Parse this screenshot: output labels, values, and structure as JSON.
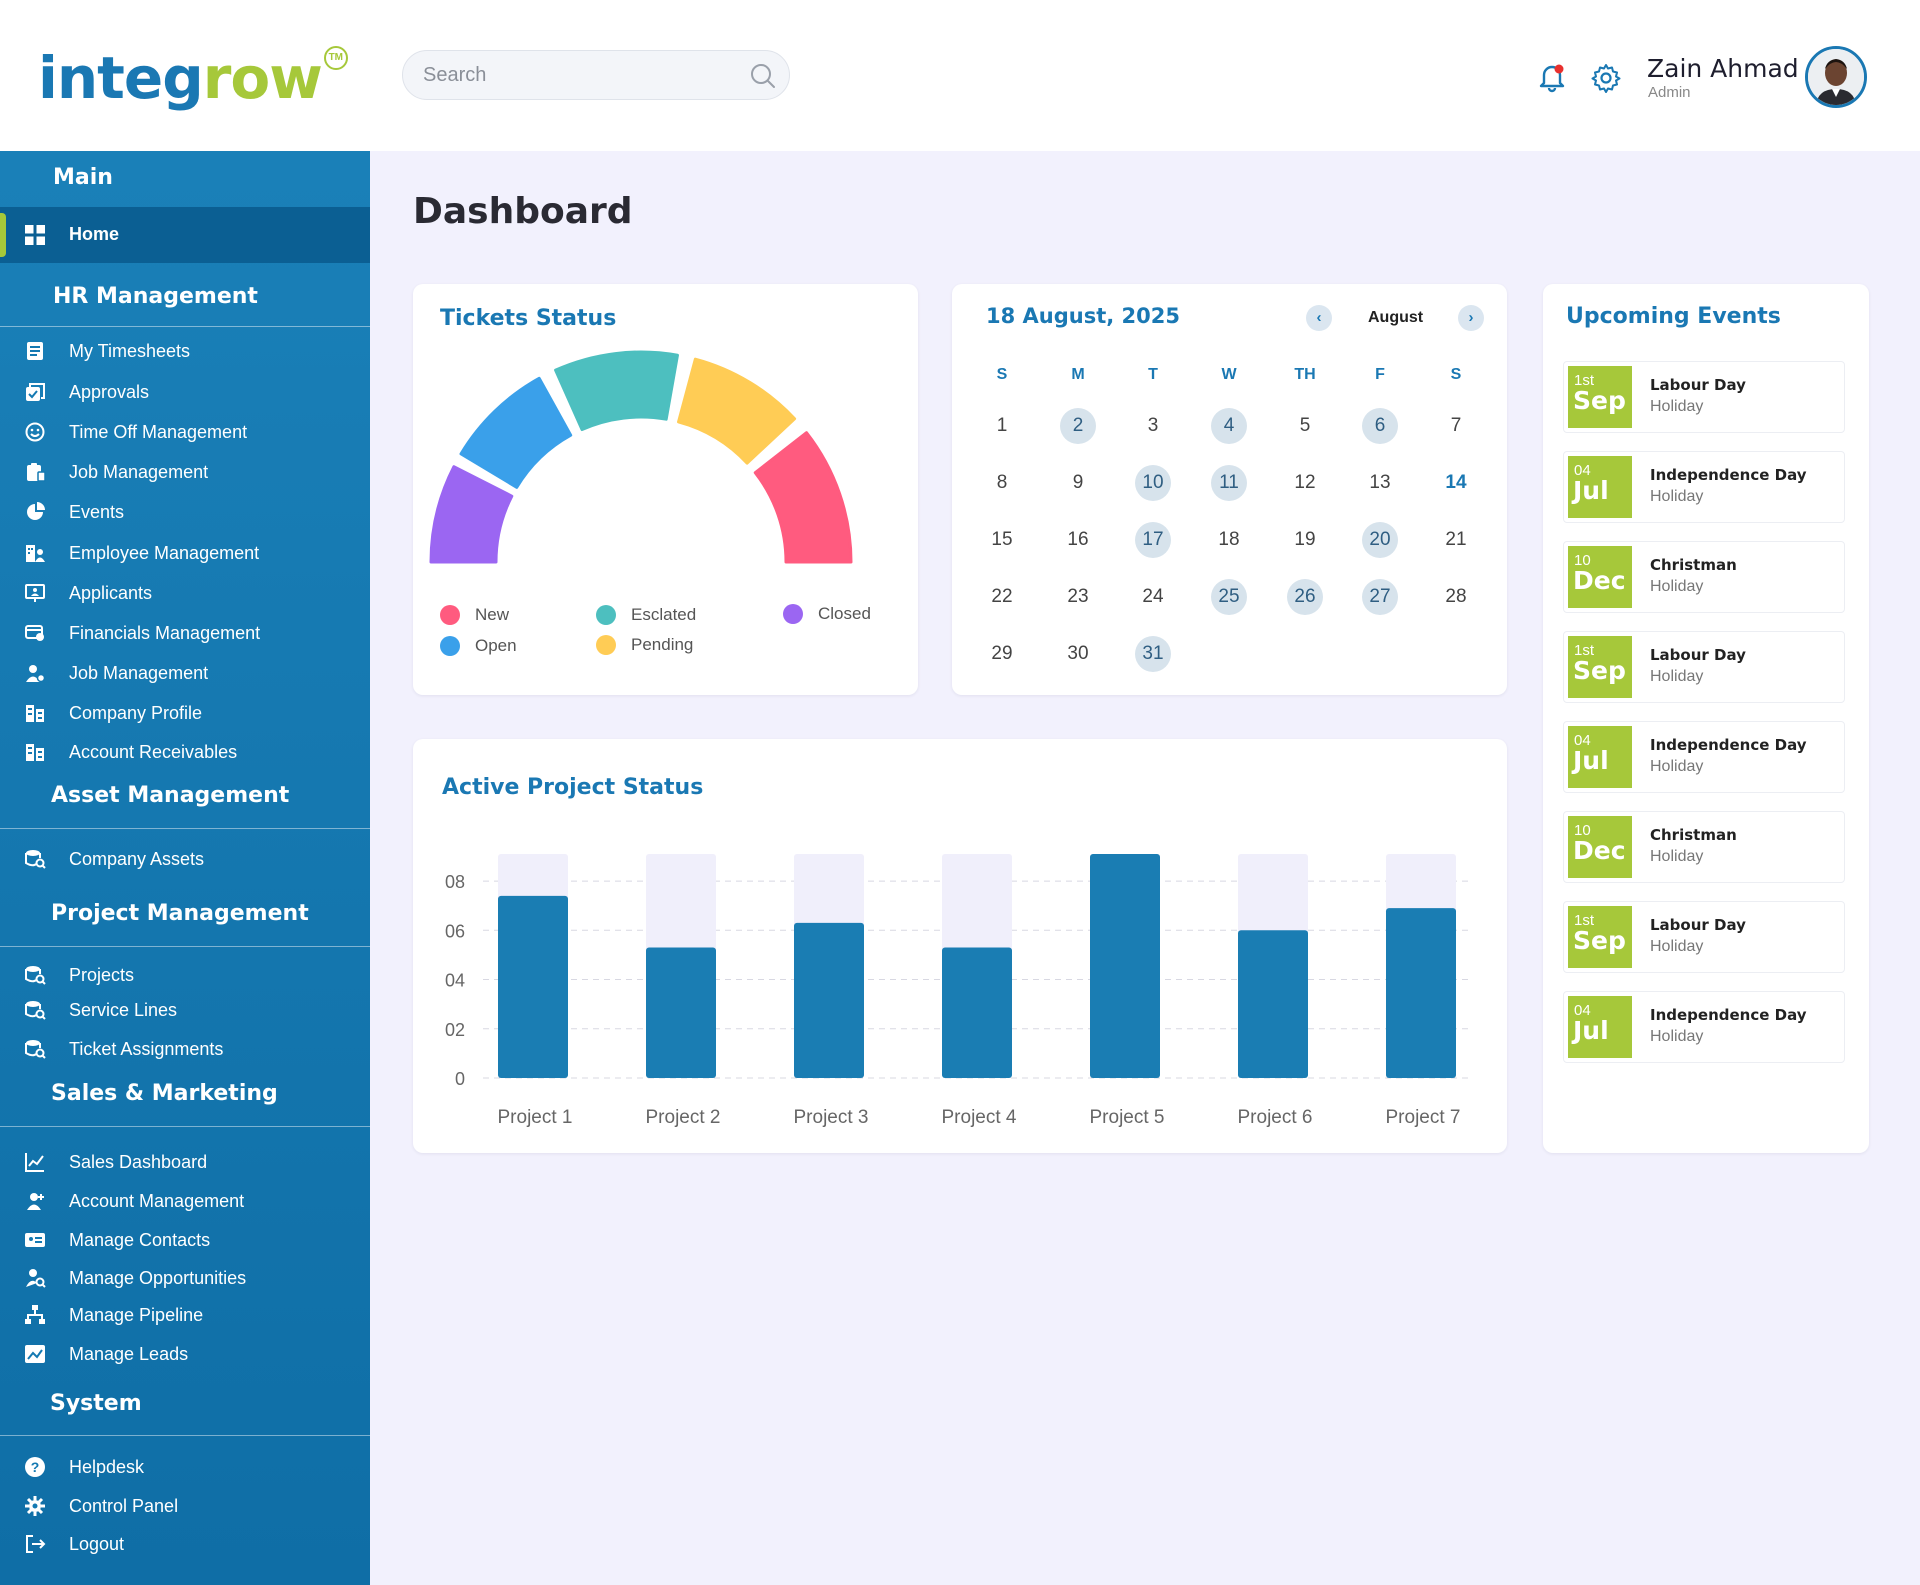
{
  "header": {
    "logo_part1": "integ",
    "logo_part2": "row",
    "logo_tm": "TM",
    "search_placeholder": "Search",
    "user_name": "Zain Ahmad",
    "user_role": "Admin"
  },
  "sidebar": {
    "main_title": "Main",
    "home_label": "Home",
    "hr_title": "HR Management",
    "hr_items": [
      {
        "label": "My Timesheets",
        "icon": "document-list-icon"
      },
      {
        "label": "Approvals",
        "icon": "checkbox-stack-icon"
      },
      {
        "label": "Time Off Management",
        "icon": "smiley-icon"
      },
      {
        "label": "Job Management",
        "icon": "clipboard-icon"
      },
      {
        "label": "Events",
        "icon": "pie-chart-icon"
      },
      {
        "label": "Employee Management",
        "icon": "building-person-icon"
      },
      {
        "label": "Applicants",
        "icon": "presentation-person-icon"
      },
      {
        "label": "Financials Management",
        "icon": "money-card-icon"
      },
      {
        "label": "Job Management",
        "icon": "user-gear-icon"
      },
      {
        "label": "Company Profile",
        "icon": "office-building-icon"
      },
      {
        "label": "Account Receivables",
        "icon": "office-building-icon"
      }
    ],
    "asset_title": "Asset Management",
    "asset_items": [
      {
        "label": "Company Assets",
        "icon": "database-search-icon"
      }
    ],
    "project_title": "Project Management",
    "project_items": [
      {
        "label": "Projects",
        "icon": "database-search-icon"
      },
      {
        "label": "Service Lines",
        "icon": "database-search-icon"
      },
      {
        "label": "Ticket Assignments",
        "icon": "database-search-icon"
      }
    ],
    "sales_title": "Sales & Marketing",
    "sales_items": [
      {
        "label": "Sales Dashboard",
        "icon": "line-chart-icon"
      },
      {
        "label": "Account Management",
        "icon": "user-add-icon"
      },
      {
        "label": "Manage Contacts",
        "icon": "id-card-icon"
      },
      {
        "label": "Manage Opportunities",
        "icon": "user-search-icon"
      },
      {
        "label": "Manage Pipeline",
        "icon": "hierarchy-icon"
      },
      {
        "label": "Manage Leads",
        "icon": "image-chart-icon"
      }
    ],
    "system_title": "System",
    "system_items": [
      {
        "label": "Helpdesk",
        "icon": "help-circle-icon"
      },
      {
        "label": "Control Panel",
        "icon": "gear-icon"
      },
      {
        "label": "Logout",
        "icon": "logout-icon"
      }
    ]
  },
  "main": {
    "page_title": "Dashboard"
  },
  "tickets": {
    "title": "Tickets Status",
    "legend": [
      {
        "label": "New",
        "color": "#ff5b7f"
      },
      {
        "label": "Esclated",
        "color": "#4dbfbf"
      },
      {
        "label": "Closed",
        "color": "#9b66f2"
      },
      {
        "label": "Open",
        "color": "#3aa0ea"
      },
      {
        "label": "Pending",
        "color": "#ffcc55"
      }
    ],
    "gauge_segments": [
      {
        "name": "Closed",
        "color": "#9b66f2"
      },
      {
        "name": "Open",
        "color": "#3aa0ea"
      },
      {
        "name": "Esclated",
        "color": "#4dbfbf"
      },
      {
        "name": "Pending",
        "color": "#ffcc55"
      },
      {
        "name": "New",
        "color": "#ff5b7f"
      }
    ]
  },
  "calendar": {
    "date_title": "18 August, 2025",
    "month": "August",
    "prev_icon": "chevron-left-icon",
    "next_icon": "chevron-right-icon",
    "weekdays": [
      "S",
      "M",
      "T",
      "W",
      "TH",
      "F",
      "S"
    ],
    "days": [
      "1",
      "2",
      "3",
      "4",
      "5",
      "6",
      "7",
      "8",
      "9",
      "10",
      "11",
      "12",
      "13",
      "14",
      "15",
      "16",
      "17",
      "18",
      "19",
      "20",
      "21",
      "22",
      "23",
      "24",
      "25",
      "26",
      "27",
      "28",
      "29",
      "30",
      "31"
    ],
    "highlighted": [
      "2",
      "4",
      "6",
      "10",
      "11",
      "17",
      "20",
      "25",
      "26",
      "27",
      "31"
    ],
    "today": "14"
  },
  "events": {
    "title": "Upcoming Events",
    "items": [
      {
        "num": "1st",
        "month": "Sep",
        "name": "Labour Day",
        "type": "Holiday"
      },
      {
        "num": "04",
        "month": "Jul",
        "name": "Independence Day",
        "type": "Holiday"
      },
      {
        "num": "10",
        "month": "Dec",
        "name": "Christman",
        "type": "Holiday"
      },
      {
        "num": "1st",
        "month": "Sep",
        "name": "Labour Day",
        "type": "Holiday"
      },
      {
        "num": "04",
        "month": "Jul",
        "name": "Independence Day",
        "type": "Holiday"
      },
      {
        "num": "10",
        "month": "Dec",
        "name": "Christman",
        "type": "Holiday"
      },
      {
        "num": "1st",
        "month": "Sep",
        "name": "Labour Day",
        "type": "Holiday"
      },
      {
        "num": "04",
        "month": "Jul",
        "name": "Independence Day",
        "type": "Holiday"
      }
    ]
  },
  "chart_data": {
    "type": "bar",
    "title": "Active Project Status",
    "categories": [
      "Project 1",
      "Project 2",
      "Project 3",
      "Project 4",
      "Project 5",
      "Project 6",
      "Project 7"
    ],
    "values": [
      7.4,
      5.3,
      6.3,
      5.3,
      9.1,
      6.0,
      6.9
    ],
    "background_max": 9.1,
    "yticks": [
      "0",
      "02",
      "04",
      "06",
      "08"
    ],
    "ytick_values": [
      0,
      2,
      4,
      6,
      8
    ],
    "ylim": [
      0,
      9.1
    ],
    "xlabel": "",
    "ylabel": "",
    "grid": true,
    "bar_color": "#1a7db3",
    "track_color": "#f0effb"
  }
}
